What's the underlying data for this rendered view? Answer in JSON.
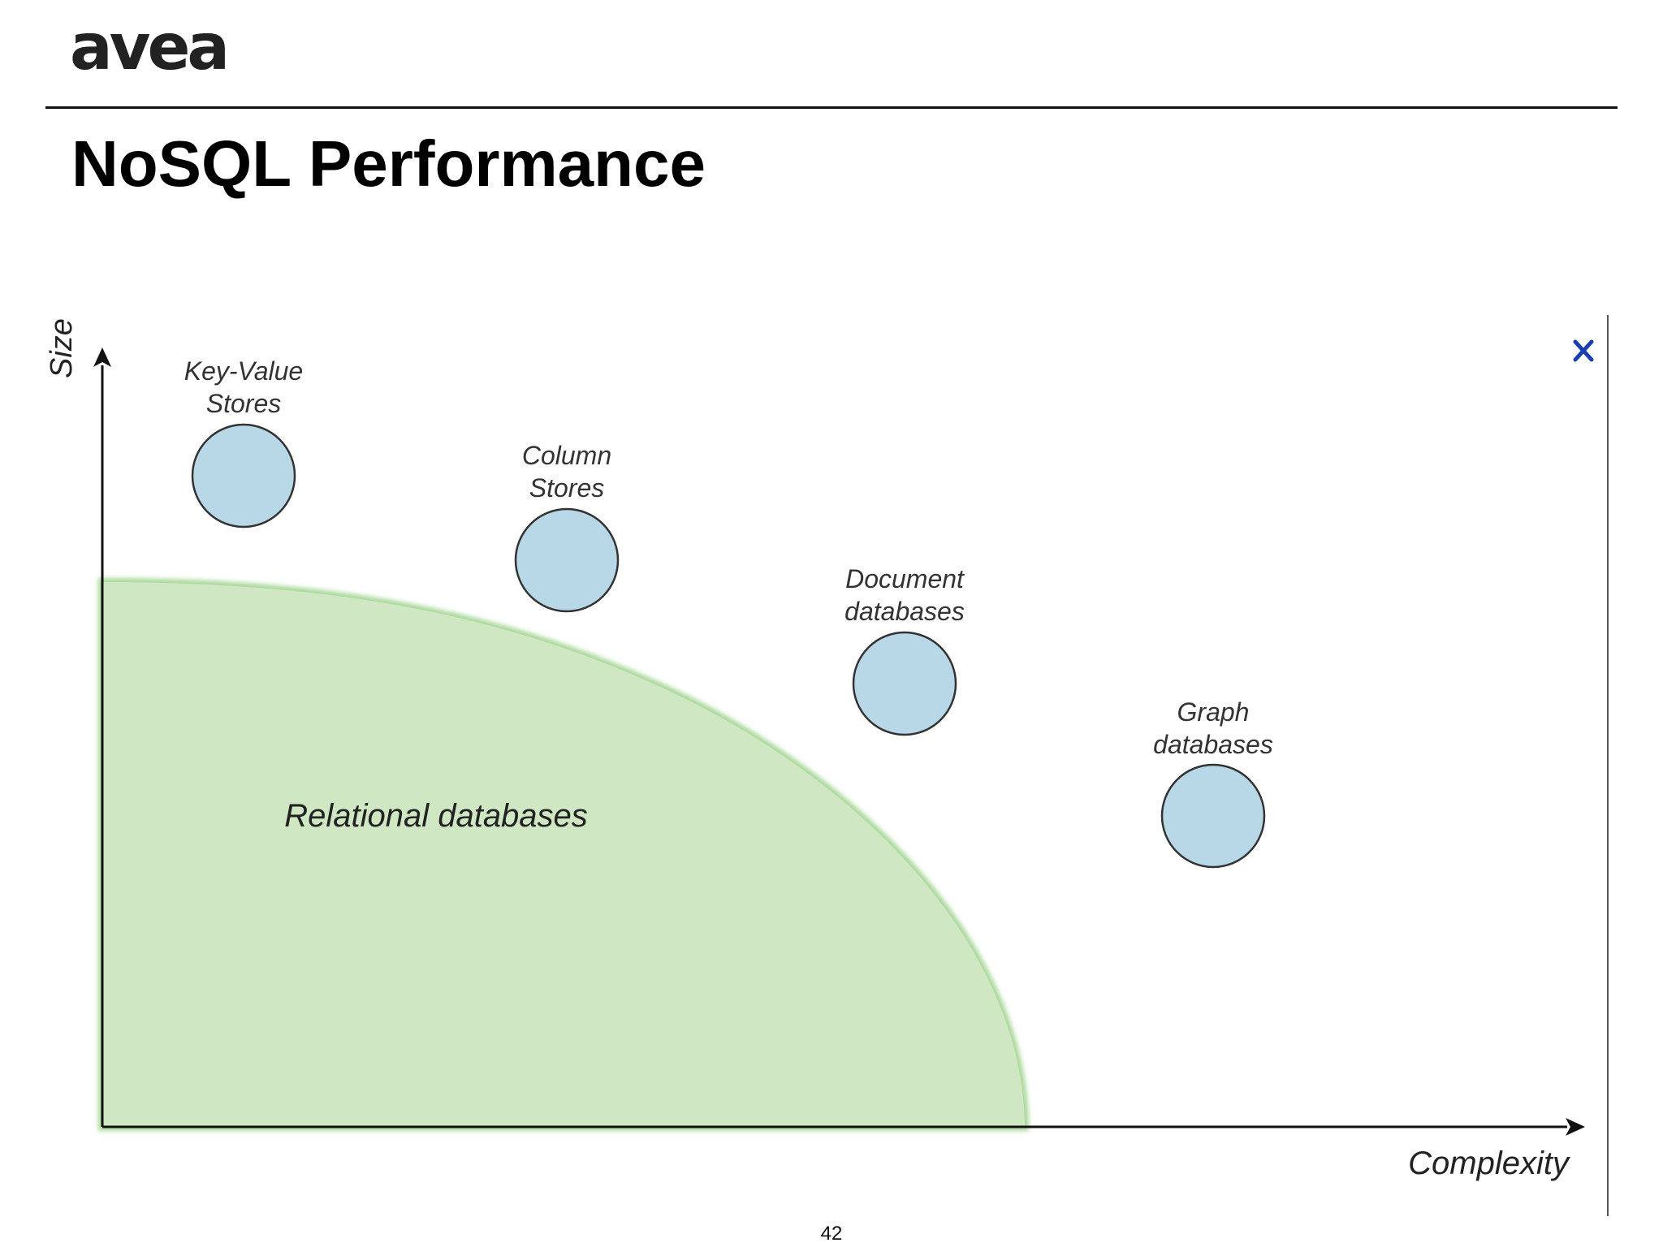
{
  "header": {
    "logo_text": "avea",
    "title": "NoSQL Performance"
  },
  "diagram": {
    "y_axis_label": "Size",
    "x_axis_label": "Complexity",
    "region": {
      "label": "Relational databases",
      "fill": "#cfe8c3",
      "edge": "#a9d89a"
    },
    "nodes": [
      {
        "id": "key-value",
        "label_lines": [
          "Key-Value",
          "Stores"
        ]
      },
      {
        "id": "column",
        "label_lines": [
          "Column",
          "Stores"
        ]
      },
      {
        "id": "document",
        "label_lines": [
          "Document",
          "databases"
        ]
      },
      {
        "id": "graph",
        "label_lines": [
          "Graph",
          "databases"
        ]
      }
    ],
    "node_fill": "#b8d8e8",
    "node_stroke": "#333333",
    "close_icon": "close-icon",
    "close_color": "#1a3fb0"
  },
  "footer": {
    "page_number": "42"
  }
}
